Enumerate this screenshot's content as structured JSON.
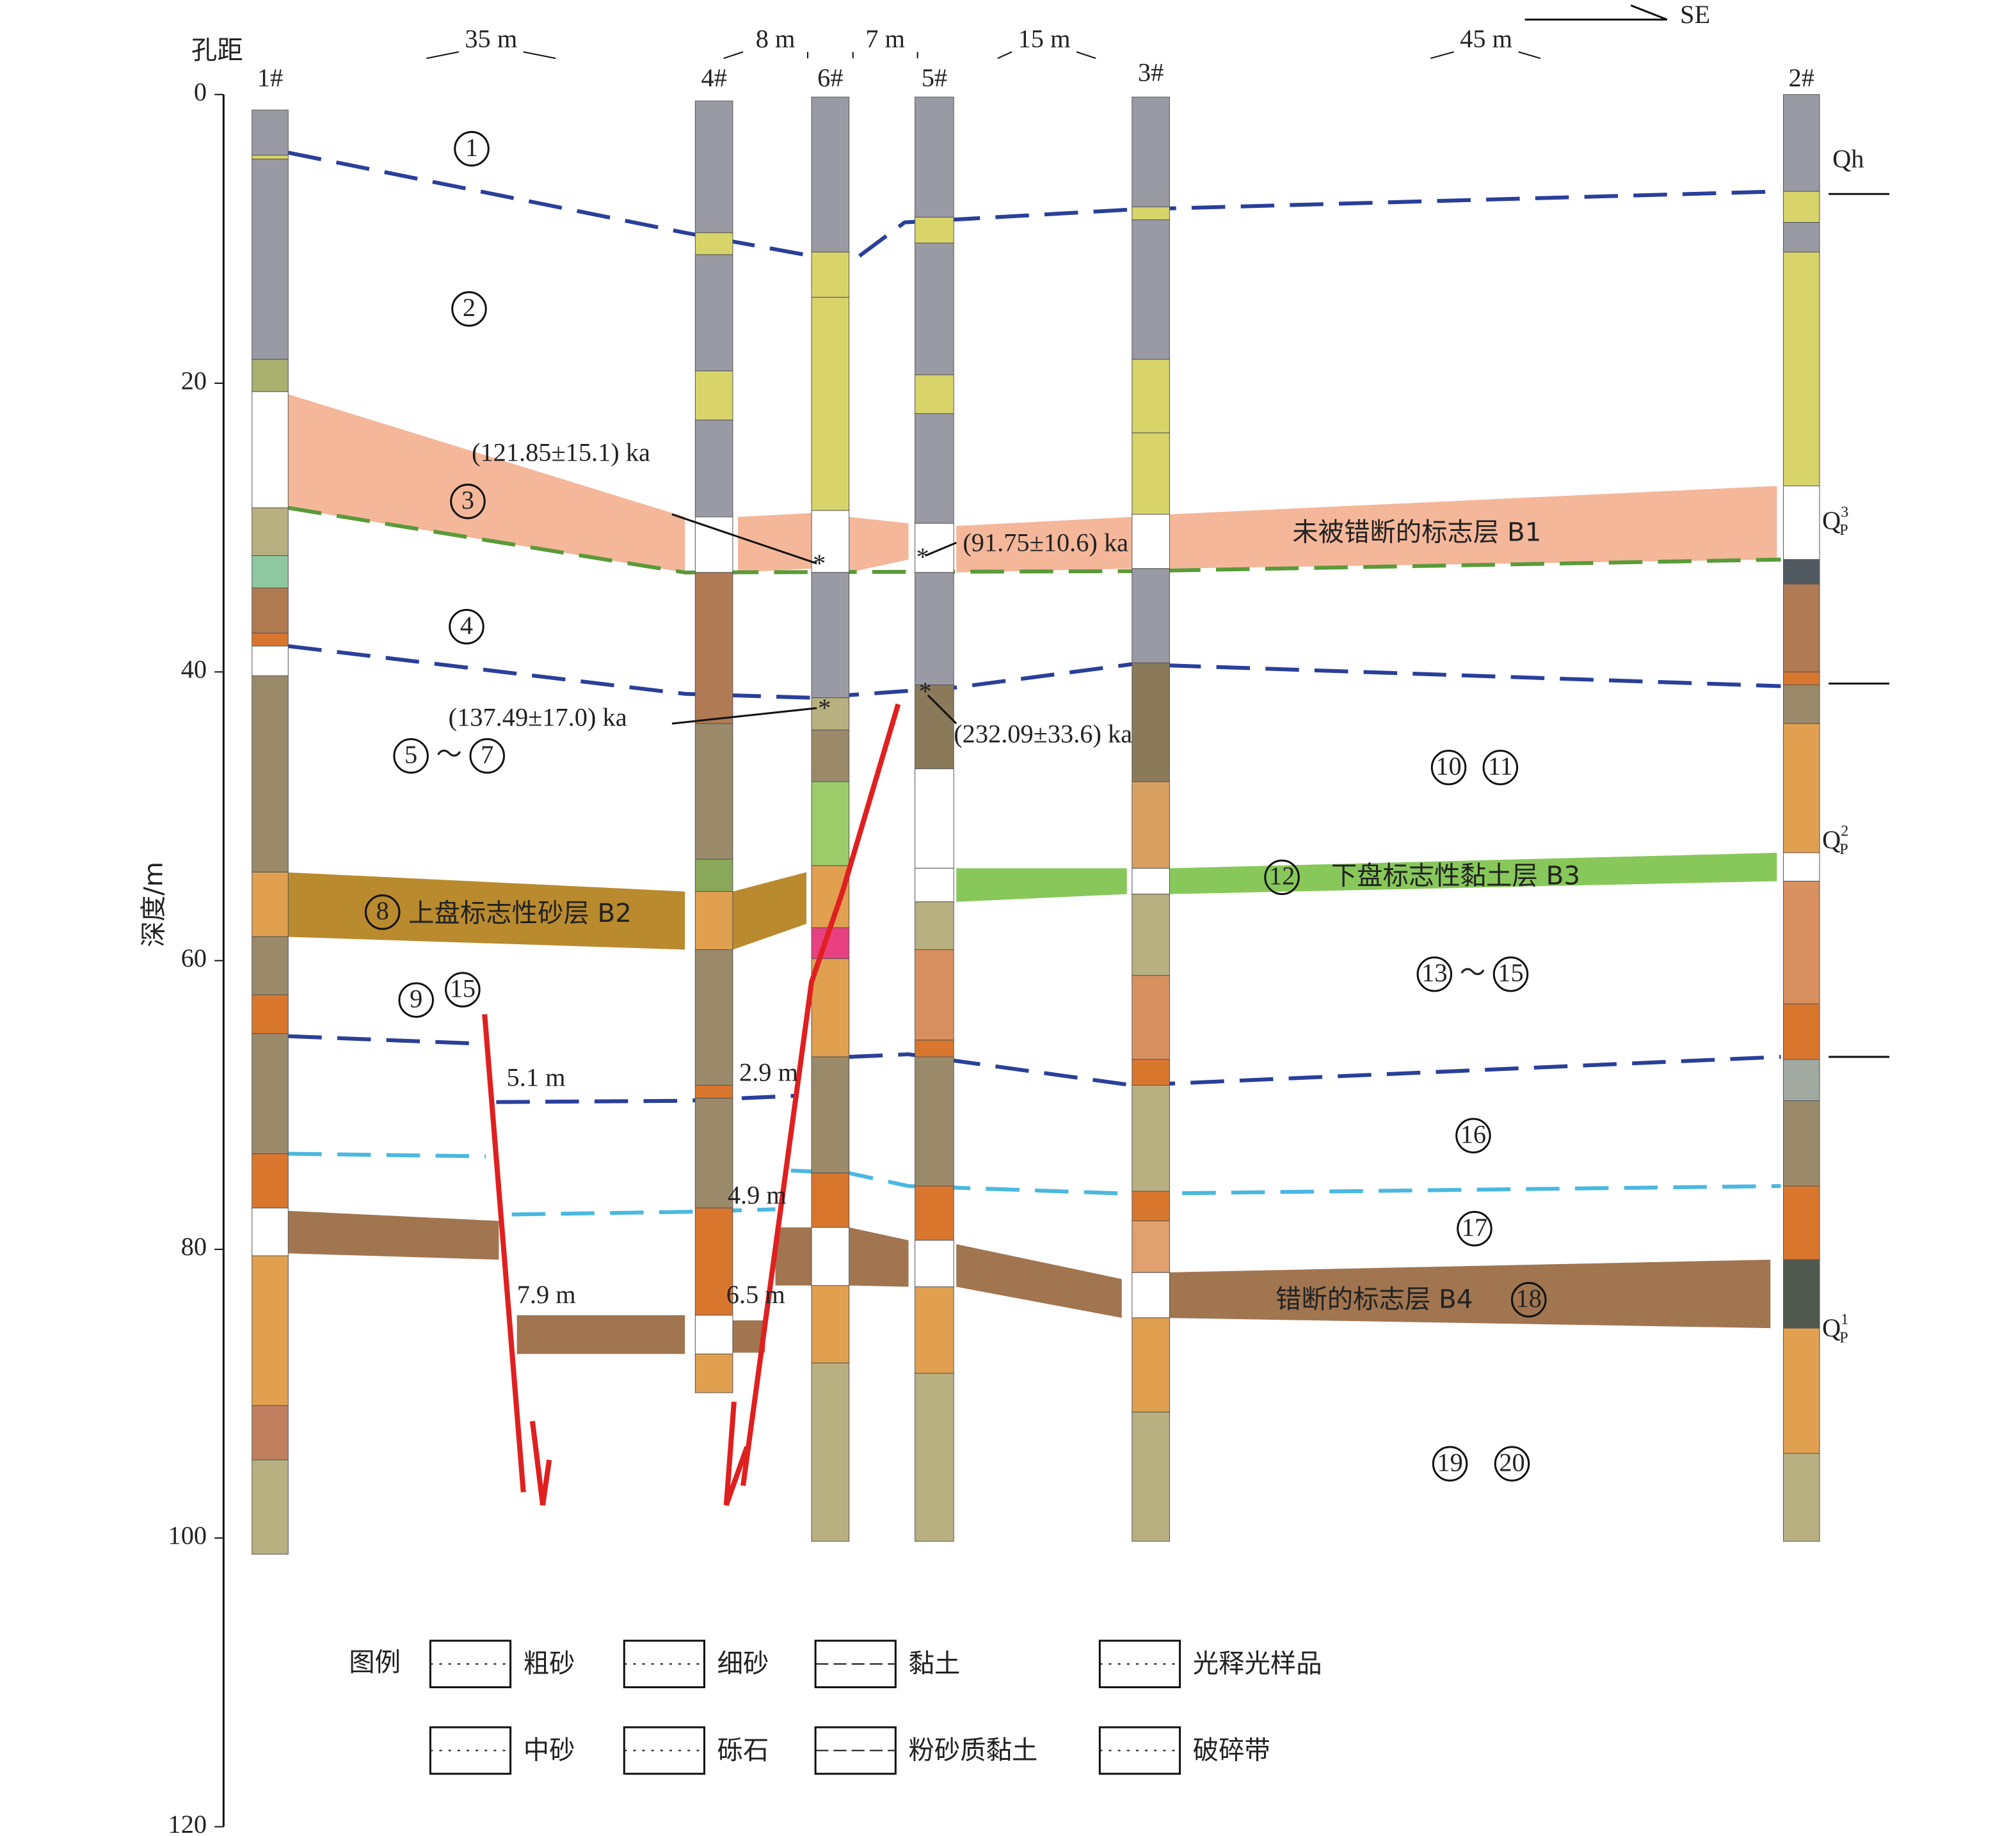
{
  "header": {
    "spacing_label": "孔距",
    "direction": "SE",
    "spacings": [
      "35 m",
      "8 m",
      "7 m",
      "15 m",
      "45 m"
    ]
  },
  "axis": {
    "label": "深度/m",
    "ticks": [
      0,
      20,
      40,
      60,
      80,
      100,
      120
    ]
  },
  "boreholes": [
    "1#",
    "4#",
    "6#",
    "5#",
    "3#",
    "2#"
  ],
  "range_sign": "～",
  "layers": [
    [
      "1"
    ],
    [
      "2"
    ],
    [
      "3"
    ],
    [
      "4"
    ],
    [
      "5",
      "7"
    ],
    [
      "8"
    ],
    [
      "9",
      "15"
    ],
    [
      "10",
      "11"
    ],
    [
      "12"
    ],
    [
      "13",
      "15"
    ],
    [
      "16"
    ],
    [
      "17"
    ],
    [
      "18"
    ],
    [
      "19",
      "20"
    ]
  ],
  "marker_beds": [
    "未被错断的标志层 B1",
    "上盘标志性砂层 B2",
    "下盘标志性黏土层 B3",
    "错断的标志层 B4"
  ],
  "ages": [
    "(121.85±15.1) ka",
    "(91.75±10.6) ka",
    "(137.49±17.0) ka",
    "(232.09±33.6) ka"
  ],
  "offsets": [
    "5.1 m",
    "2.9 m",
    "4.9 m",
    "7.9 m",
    "6.5 m"
  ],
  "stages": [
    {
      "symbol": "Qh"
    },
    {
      "symbol": "Q",
      "sub": "P",
      "sup": "3"
    },
    {
      "symbol": "Q",
      "sub": "P",
      "sup": "2"
    },
    {
      "symbol": "Q",
      "sub": "P",
      "sup": "1"
    }
  ],
  "legend": {
    "title": "图例",
    "items": [
      "粗砂",
      "细砂",
      "黏土",
      "光释光样品",
      "中砂",
      "砾石",
      "粉砂质黏土",
      "破碎带"
    ]
  }
}
